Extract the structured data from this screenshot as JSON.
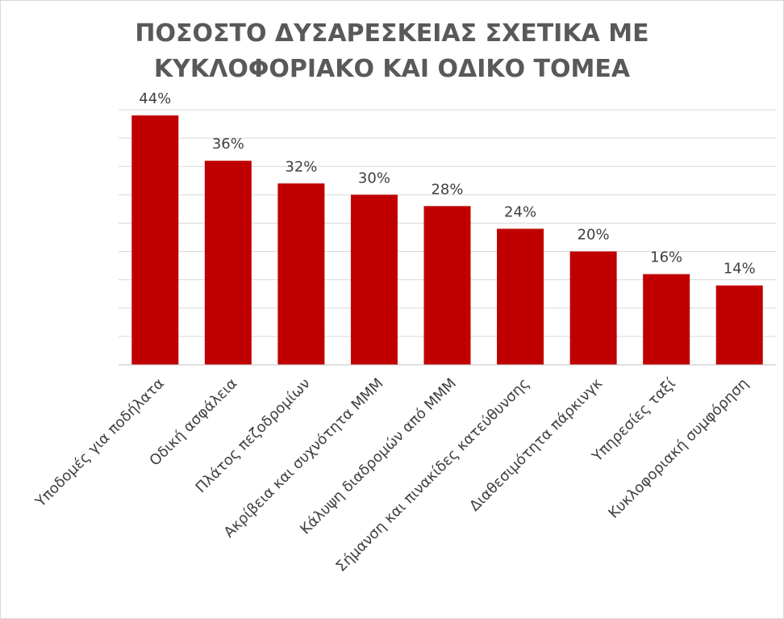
{
  "chart_data": {
    "type": "bar",
    "title_lines": [
      "ΠΟΣΟΣΤΟ ΔΥΣΑΡΕΣΚΕΙΑΣ ΣΧΕΤΙΚΑ ΜΕ",
      "ΚΥΚΛΟΦΟΡΙΑΚΟ ΚΑΙ ΟΔΙΚΟ ΤΟΜΕΑ"
    ],
    "categories": [
      "Υποδομές για ποδήλατα",
      "Οδική ασφάλεια",
      "Πλάτος πεζοδρομίων",
      "Ακρίβεια και συχνότητα ΜΜΜ",
      "Κάλυψη διαδρομών από ΜΜΜ",
      "Σήμανση και πινακίδες κατεύθυνσης",
      "Διαθεσιμότητα πάρκινγκ",
      "Υπηρεσίες ταξί",
      "Κυκλοφοριακή συμφόρηση"
    ],
    "values": [
      44,
      36,
      32,
      30,
      28,
      24,
      20,
      16,
      14
    ],
    "value_labels": [
      "44%",
      "36%",
      "32%",
      "30%",
      "28%",
      "24%",
      "20%",
      "16%",
      "14%"
    ],
    "unit": "%",
    "ylim": [
      0,
      45
    ],
    "grid": true,
    "y_axis_labels_shown": false,
    "legend": "none",
    "colors": {
      "bar": "#c00000",
      "text": "#404040",
      "title": "#595959",
      "grid": "#d9d9d9"
    }
  }
}
